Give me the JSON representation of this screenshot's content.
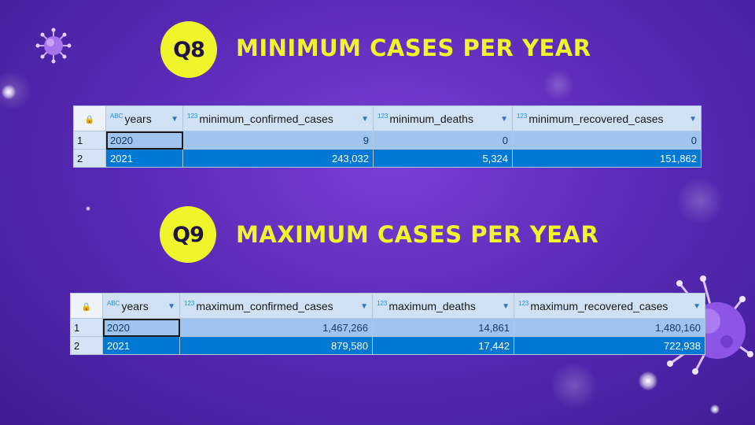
{
  "q8": {
    "badge": "Q8",
    "title": "MINIMUM CASES PER YEAR",
    "columns": [
      {
        "type": "ABC",
        "name": "years"
      },
      {
        "type": "123",
        "name": "minimum_confirmed_cases"
      },
      {
        "type": "123",
        "name": "minimum_deaths"
      },
      {
        "type": "123",
        "name": "minimum_recovered_cases"
      }
    ],
    "rows": [
      {
        "num": "1",
        "cells": [
          "2020",
          "9",
          "0",
          "0"
        ]
      },
      {
        "num": "2",
        "cells": [
          "2021",
          "243,032",
          "5,324",
          "151,862"
        ]
      }
    ]
  },
  "q9": {
    "badge": "Q9",
    "title": "MAXIMUM CASES PER YEAR",
    "columns": [
      {
        "type": "ABC",
        "name": "years"
      },
      {
        "type": "123",
        "name": "maximum_confirmed_cases"
      },
      {
        "type": "123",
        "name": "maximum_deaths"
      },
      {
        "type": "123",
        "name": "maximum_recovered_cases"
      }
    ],
    "rows": [
      {
        "num": "1",
        "cells": [
          "2020",
          "1,467,266",
          "14,861",
          "1,480,160"
        ]
      },
      {
        "num": "2",
        "cells": [
          "2021",
          "879,580",
          "17,442",
          "722,938"
        ]
      }
    ]
  },
  "colors": {
    "accent_yellow": "#eef52a",
    "background_purple": "#5a2bb8",
    "header_blue": "#cfe1f3",
    "row_light": "#9fc5ee",
    "row_selected": "#0078d4"
  },
  "icons": {
    "lock": "lock-icon",
    "virus": "virus-icon",
    "sort_arrow": "sort-arrow-icon"
  }
}
